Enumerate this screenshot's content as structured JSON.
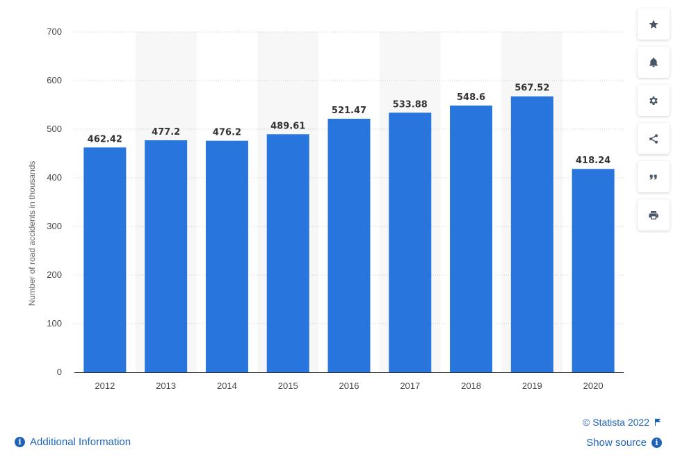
{
  "chart_data": {
    "type": "bar",
    "categories": [
      "2012",
      "2013",
      "2014",
      "2015",
      "2016",
      "2017",
      "2018",
      "2019",
      "2020"
    ],
    "values": [
      462.42,
      477.2,
      476.2,
      489.61,
      521.47,
      533.88,
      548.6,
      567.52,
      418.24
    ],
    "value_labels": [
      "462.42",
      "477.2",
      "476.2",
      "489.61",
      "521.47",
      "533.88",
      "548.6",
      "567.52",
      "418.24"
    ],
    "title": "",
    "xlabel": "",
    "ylabel": "Number of road accidents in thousands",
    "ylim": [
      0,
      700
    ],
    "yticks": [
      "0",
      "100",
      "200",
      "300",
      "400",
      "500",
      "600",
      "700"
    ],
    "grid": true,
    "bar_color": "#2876dd"
  },
  "toolbar": {
    "buttons": [
      {
        "icon": "star-icon",
        "label": "Favorite"
      },
      {
        "icon": "bell-icon",
        "label": "Notifications"
      },
      {
        "icon": "gear-icon",
        "label": "Settings"
      },
      {
        "icon": "share-icon",
        "label": "Share"
      },
      {
        "icon": "quote-icon",
        "label": "Cite"
      },
      {
        "icon": "print-icon",
        "label": "Print"
      }
    ]
  },
  "footer": {
    "copyright": "© Statista 2022",
    "additional_info": "Additional Information",
    "show_source": "Show source",
    "info_glyph": "i"
  },
  "colors": {
    "accent": "#1f63b8",
    "bar": "#2876dd",
    "band": "#f7f7f7",
    "grid": "#cccccc"
  }
}
